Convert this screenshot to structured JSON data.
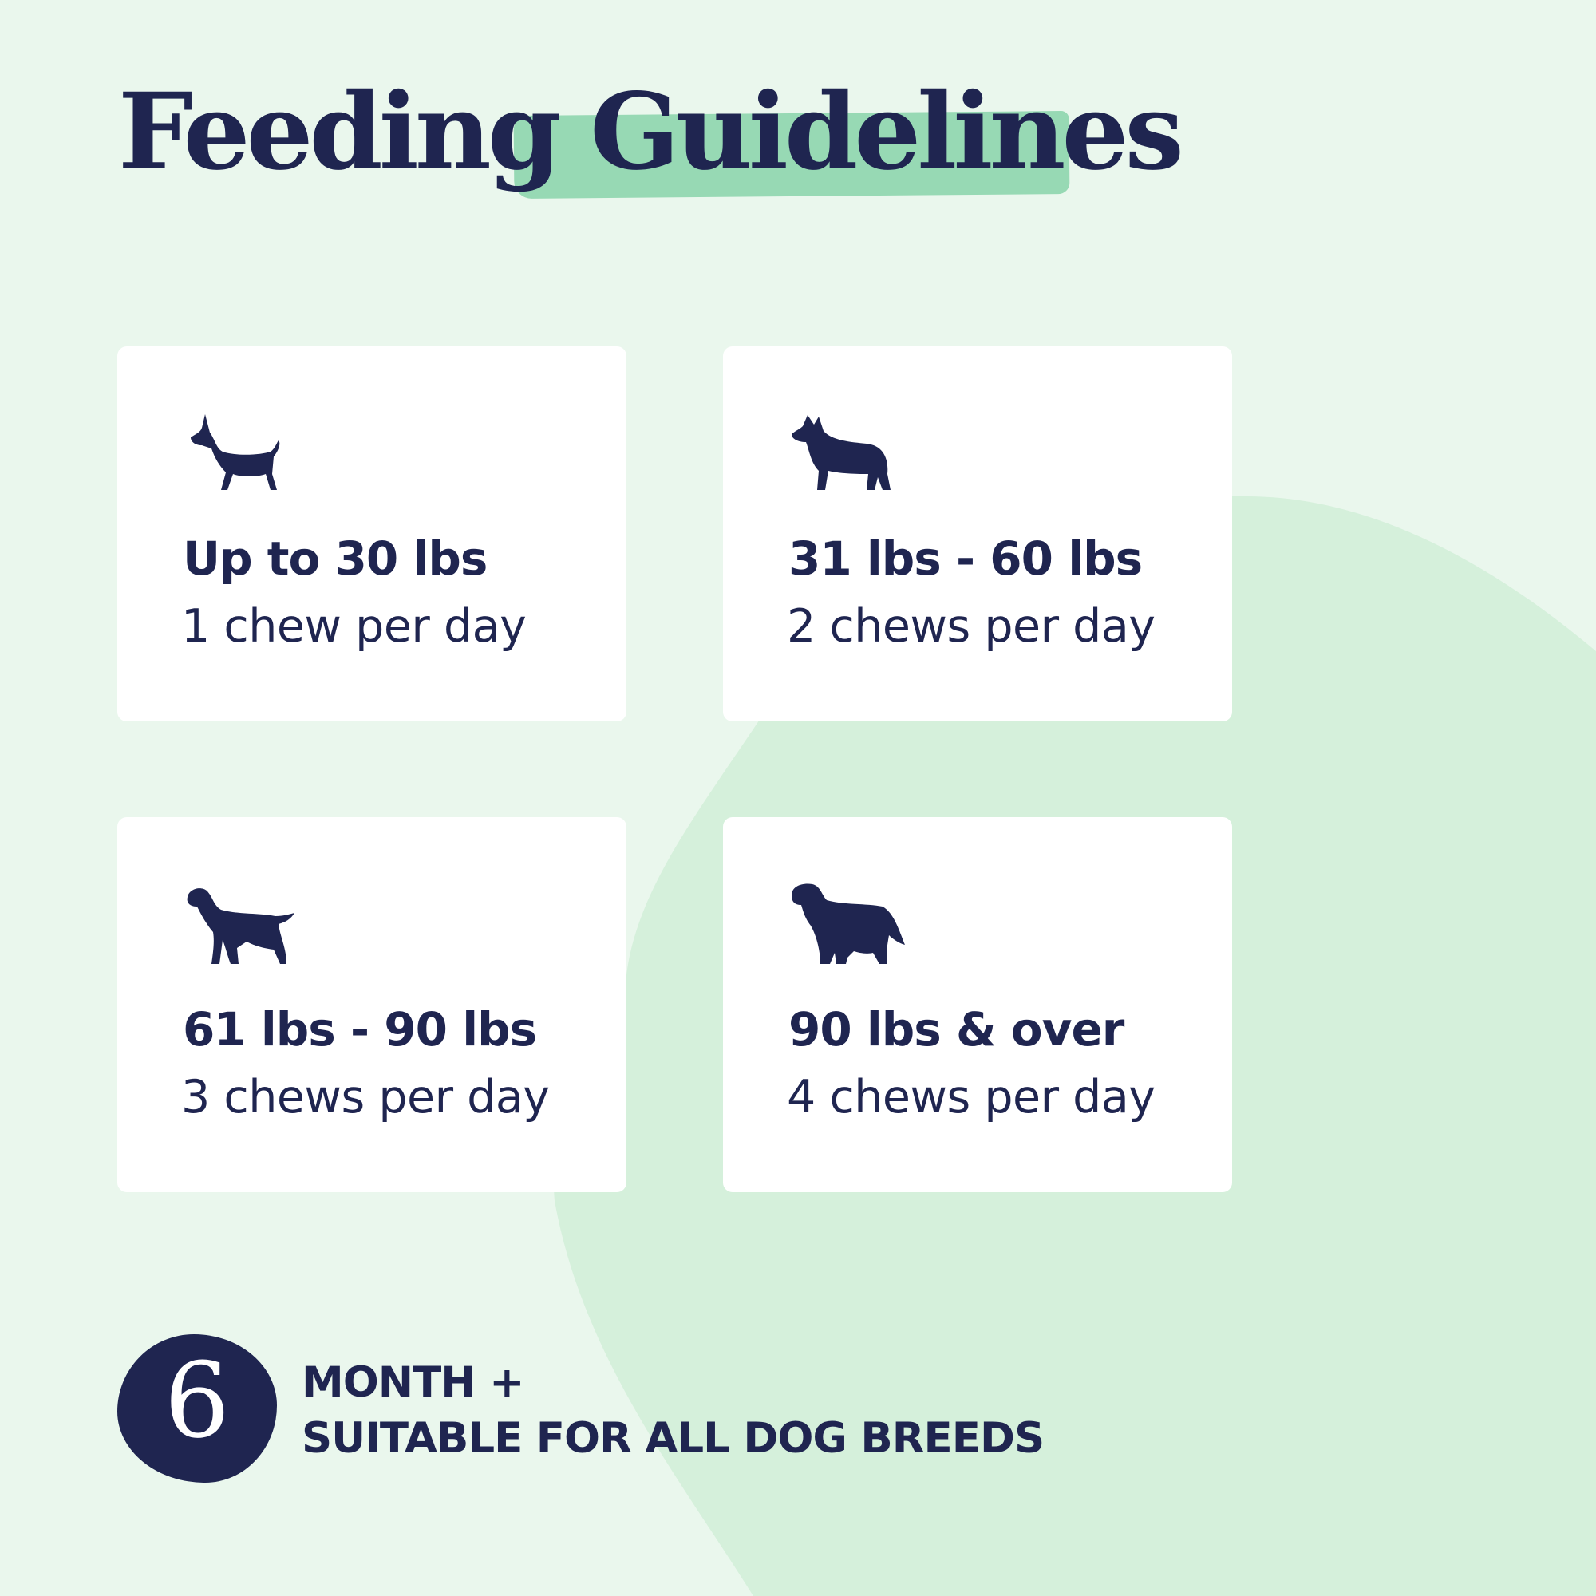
{
  "title": {
    "part1": "Feeding",
    "part2": "Guidelines"
  },
  "colors": {
    "background": "#eaf7ed",
    "blob": "#d5f0db",
    "highlight": "#97d9b4",
    "navy": "#1f2550",
    "card": "#ffffff"
  },
  "cards": [
    {
      "icon": "small-dog-icon",
      "range": "Up to 30 lbs",
      "dose": "1 chew per day"
    },
    {
      "icon": "medium-dog-icon",
      "range": "31 lbs - 60 lbs",
      "dose": "2 chews per day"
    },
    {
      "icon": "large-dog-icon",
      "range": "61 lbs - 90 lbs",
      "dose": "3 chews per day"
    },
    {
      "icon": "giant-dog-icon",
      "range": "90 lbs & over",
      "dose": "4 chews per day"
    }
  ],
  "footer": {
    "badge_number": "6",
    "line1": "MONTH +",
    "line2": "SUITABLE FOR ALL DOG BREEDS"
  }
}
